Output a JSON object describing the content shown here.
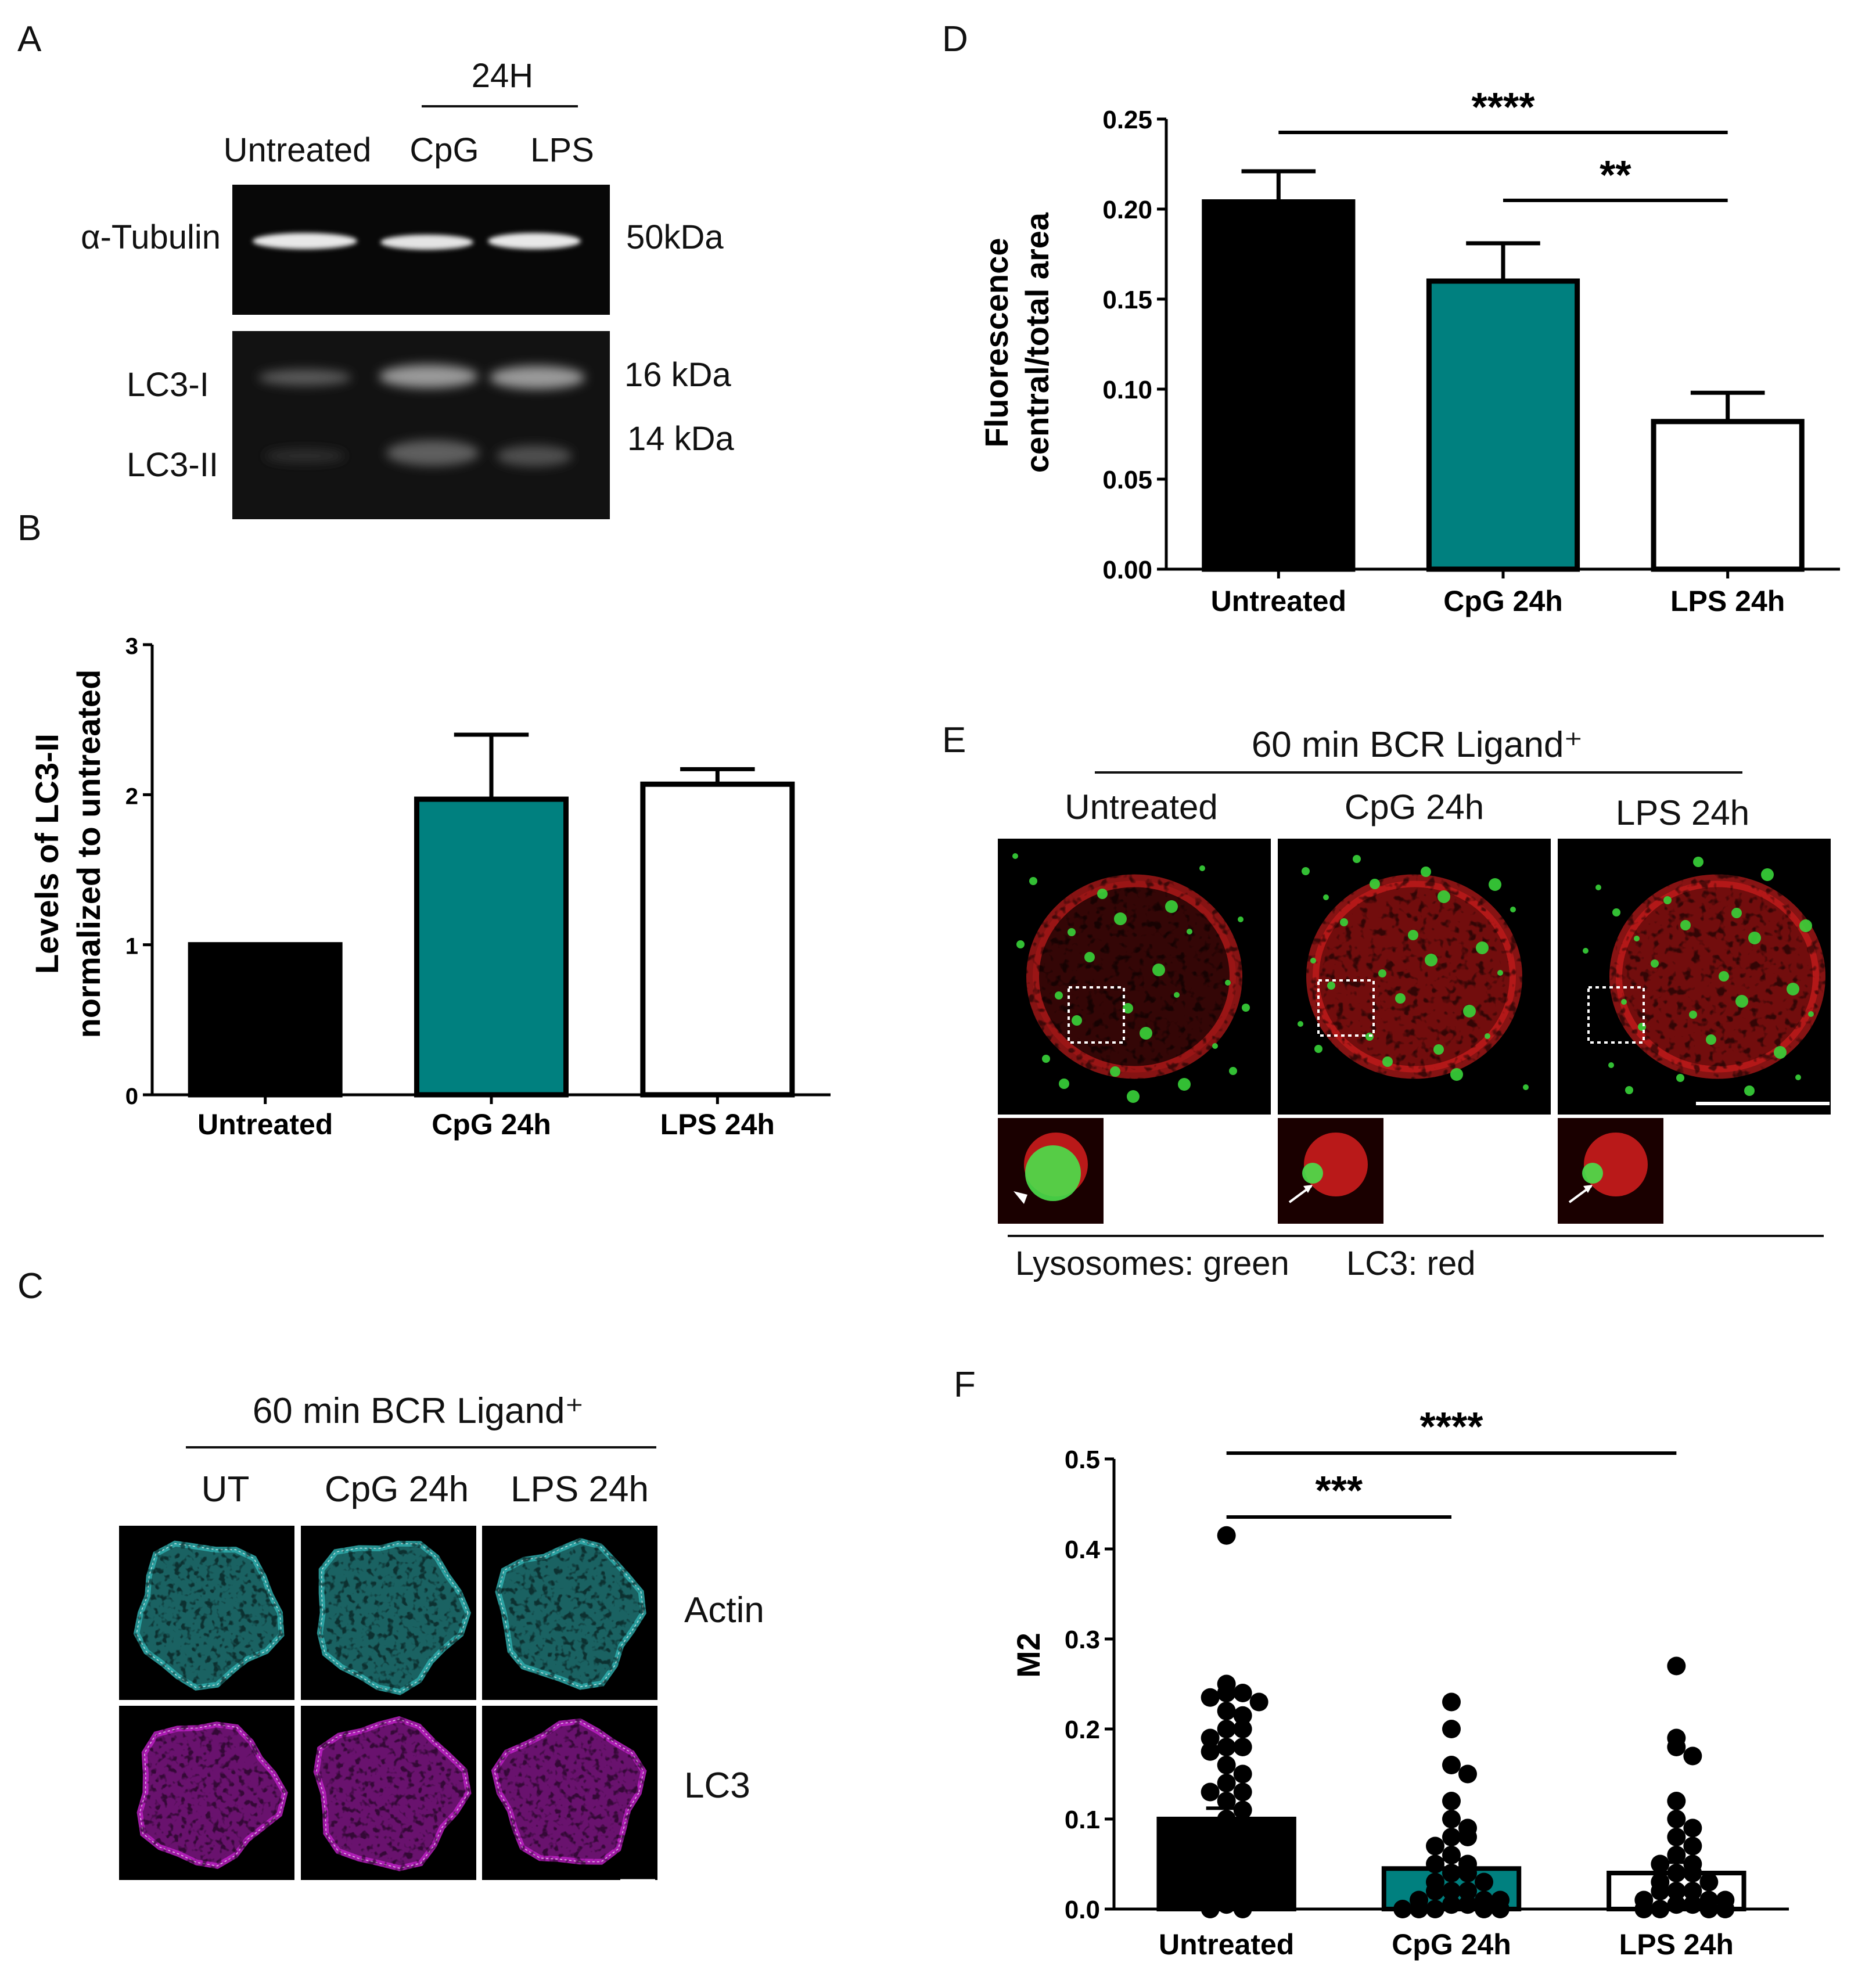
{
  "panel_letters": [
    "A",
    "B",
    "C",
    "D",
    "E",
    "F"
  ],
  "panel_a": {
    "group_label": "24H",
    "lanes": [
      "Untreated",
      "CpG",
      "LPS"
    ],
    "row_labels": [
      "α-Tubulin",
      "LC3-I",
      "LC3-II"
    ],
    "markers": [
      "50kDa",
      "16 kDa",
      "14 kDa"
    ]
  },
  "panel_c": {
    "title": "60 min BCR Ligand⁺",
    "columns": [
      "UT",
      "CpG 24h",
      "LPS 24h"
    ],
    "channels": [
      {
        "label": "Actin",
        "color": "#1ea7d8"
      },
      {
        "label": "LC3",
        "color": "#9b2bb3"
      }
    ]
  },
  "panel_e": {
    "title": "60 min BCR Ligand⁺",
    "columns": [
      "Untreated",
      "CpG 24h",
      "LPS 24h"
    ],
    "legend": [
      {
        "label": "Lysosomes: green",
        "color": "#1a8c3a"
      },
      {
        "label": "LC3: red",
        "color": "#e02020"
      }
    ]
  },
  "chart_data": [
    {
      "panel": "B",
      "type": "bar",
      "categories": [
        "Untreated",
        "CpG 24h",
        "LPS 24h"
      ],
      "values": [
        1.0,
        1.97,
        2.07
      ],
      "errors": [
        0,
        0.43,
        0.1
      ],
      "colors": [
        "#000000",
        "#00807f",
        "#ffffff"
      ],
      "ylabel": [
        "Levels of LC3-II",
        "normalized to untreated"
      ],
      "ylim": [
        0,
        3
      ],
      "yticks": [
        "0",
        "1",
        "2",
        "3"
      ]
    },
    {
      "panel": "D",
      "type": "bar",
      "categories": [
        "Untreated",
        "CpG 24h",
        "LPS 24h"
      ],
      "values": [
        0.204,
        0.16,
        0.082
      ],
      "errors": [
        0.017,
        0.021,
        0.016
      ],
      "colors": [
        "#000000",
        "#00807f",
        "#ffffff"
      ],
      "ylabel": [
        "Fluorescence",
        "central/total area"
      ],
      "ylim": [
        0,
        0.25
      ],
      "yticks": [
        "0.00",
        "0.05",
        "0.10",
        "0.15",
        "0.20",
        "0.25"
      ],
      "significance": [
        {
          "from": "Untreated",
          "to": "LPS 24h",
          "label": "****"
        },
        {
          "from": "CpG 24h",
          "to": "LPS 24h",
          "label": "**"
        }
      ]
    },
    {
      "panel": "F",
      "type": "scatter",
      "categories": [
        "Untreated",
        "CpG 24h",
        "LPS  24h"
      ],
      "means": [
        0.1,
        0.045,
        0.04
      ],
      "errors": [
        0.012,
        0.01,
        0.012
      ],
      "colors": [
        "#000000",
        "#00807f",
        "#ffffff"
      ],
      "ylabel": "M2",
      "ylim": [
        0,
        0.5
      ],
      "yticks": [
        "0.0",
        "0.1",
        "0.2",
        "0.3",
        "0.4",
        "0.5"
      ],
      "points": [
        [
          0.415,
          0.25,
          0.24,
          0.24,
          0.235,
          0.23,
          0.22,
          0.215,
          0.2,
          0.2,
          0.19,
          0.18,
          0.18,
          0.175,
          0.16,
          0.15,
          0.14,
          0.13,
          0.13,
          0.12,
          0.11,
          0.1,
          0.09,
          0.09,
          0.08,
          0.07,
          0.06,
          0.05,
          0.04,
          0.03,
          0.02,
          0.01,
          0.005,
          0.0,
          0.0
        ],
        [
          0.23,
          0.2,
          0.16,
          0.15,
          0.12,
          0.1,
          0.09,
          0.08,
          0.08,
          0.07,
          0.06,
          0.05,
          0.05,
          0.04,
          0.04,
          0.03,
          0.03,
          0.02,
          0.02,
          0.02,
          0.01,
          0.01,
          0.01,
          0.005,
          0.005,
          0.0,
          0.0,
          0.0,
          0.0,
          0.0
        ],
        [
          0.27,
          0.19,
          0.18,
          0.17,
          0.12,
          0.1,
          0.09,
          0.08,
          0.07,
          0.06,
          0.05,
          0.05,
          0.04,
          0.04,
          0.03,
          0.03,
          0.02,
          0.02,
          0.02,
          0.01,
          0.01,
          0.01,
          0.005,
          0.005,
          0.0,
          0.0,
          0.0,
          0.0
        ]
      ],
      "significance": [
        {
          "from": "Untreated",
          "to": "CpG 24h",
          "label": "***"
        },
        {
          "from": "Untreated",
          "to": "LPS  24h",
          "label": "****"
        }
      ]
    }
  ]
}
